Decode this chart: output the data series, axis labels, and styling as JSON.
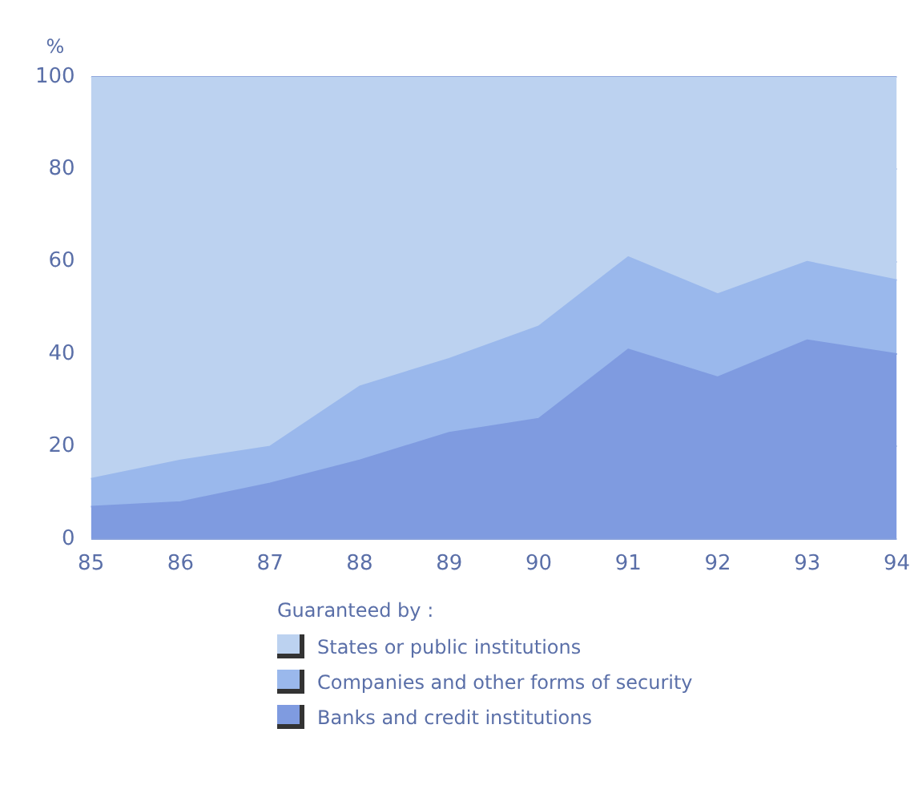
{
  "chart_data": {
    "type": "area",
    "stacked": true,
    "ylabel": "%",
    "legend_title": "Guaranteed by :",
    "legend": "bottom",
    "grid": "y",
    "categories": [
      "85",
      "86",
      "87",
      "88",
      "89",
      "90",
      "91",
      "92",
      "93",
      "94"
    ],
    "ylim": [
      0,
      100
    ],
    "yticks": [
      0,
      20,
      40,
      60,
      80,
      100
    ],
    "series": [
      {
        "name": "Banks and credit institutions",
        "color": "#7f9be0",
        "values": [
          7,
          8,
          12,
          17,
          23,
          26,
          41,
          35,
          43,
          40
        ]
      },
      {
        "name": "Companies and other forms of security",
        "color": "#9ab8ec",
        "values": [
          6,
          9,
          8,
          16,
          16,
          20,
          20,
          18,
          17,
          16
        ]
      },
      {
        "name": "States or public institutions",
        "color": "#bcd2f0",
        "values": [
          87,
          83,
          80,
          67,
          61,
          54,
          39,
          47,
          40,
          44
        ]
      }
    ]
  }
}
